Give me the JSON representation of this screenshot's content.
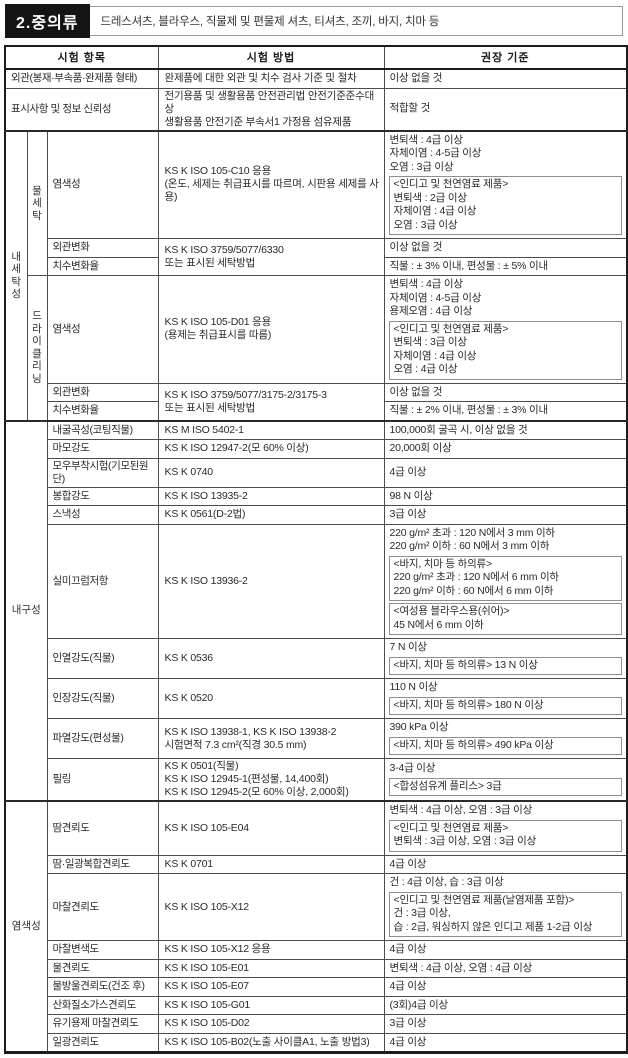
{
  "page": {
    "title": "2.중의류",
    "subtitle": "드레스셔츠, 블라우스, 직물제 및 편물제 셔츠, 티셔츠, 조끼, 바지, 치마 등"
  },
  "colors": {
    "title_bg": "#141414",
    "title_fg": "#ffffff",
    "border_dark": "#1c1c1c",
    "border": "#4c4c4c",
    "box_border": "#8f8f8f"
  },
  "table": {
    "headers": [
      "시험 항목",
      "시험 방법",
      "권장 기준"
    ],
    "sections": [
      {
        "rows": [
          {
            "item": "외관(봉재·부속품·완제품 형태)",
            "method": [
              "완제품에 대한 외관 및 치수 검사 기준 및 절차"
            ],
            "standard": [
              {
                "lines": [
                  "이상 없을 것"
                ]
              }
            ]
          },
          {
            "item": "표시사항 및 정보 신뢰성",
            "method": [
              "전기용품 및 생활용품 안전관리법 안전기준준수대상",
              "생활용품 안전기준 부속서1 가정용 섬유제품"
            ],
            "standard": [
              {
                "lines": [
                  "적합할 것"
                ]
              }
            ]
          }
        ]
      },
      {
        "group": "내세탁성",
        "vertical": true,
        "subsections": [
          {
            "subgroup": "물세탁",
            "rows": [
              {
                "item": "염색성",
                "method": [
                  "KS K ISO 105-C10 응용",
                  "(온도, 세제는 취급표시를 따르며, 시판용 세제를 사용)"
                ],
                "standard": [
                  {
                    "lines": [
                      "변퇴색 : 4급 이상",
                      "자체이염 : 4-5급 이상",
                      "오염 : 3급 이상"
                    ]
                  },
                  {
                    "box": true,
                    "lines": [
                      "<인디고 및 천연염료 제품>",
                      "변퇴색 : 2급 이상",
                      "자체이염 : 4급 이상",
                      "오염 : 3급 이상"
                    ]
                  }
                ]
              },
              {
                "item": "외관변화",
                "method": [
                  "KS K ISO 3759/5077/6330",
                  "또는 표시된 세탁방법"
                ],
                "methodSpan": 2,
                "standard": [
                  {
                    "lines": [
                      "이상 없을 것"
                    ]
                  }
                ]
              },
              {
                "item": "치수변화율",
                "method": null,
                "standard": [
                  {
                    "lines": [
                      "직물 : ± 3% 이내, 편성물 : ± 5% 이내"
                    ]
                  }
                ]
              }
            ]
          },
          {
            "subgroup": "드라이클리닝",
            "rows": [
              {
                "item": "염색성",
                "method": [
                  "KS K ISO 105-D01 응용",
                  "(용제는 취급표시를 따름)"
                ],
                "standard": [
                  {
                    "lines": [
                      "변퇴색 : 4급 이상",
                      "자체이염 : 4-5급 이상",
                      "용제오염 : 4급 이상"
                    ]
                  },
                  {
                    "box": true,
                    "lines": [
                      "<인디고 및 천연염료 제품>",
                      "변퇴색 : 3급 이상",
                      "자체이염 : 4급 이상",
                      "오염 : 4급 이상"
                    ]
                  }
                ]
              },
              {
                "item": "외관변화",
                "method": [
                  "KS K ISO 3759/5077/3175-2/3175-3",
                  "또는 표시된 세탁방법"
                ],
                "methodSpan": 2,
                "standard": [
                  {
                    "lines": [
                      "이상 없을 것"
                    ]
                  }
                ]
              },
              {
                "item": "치수변화율",
                "method": null,
                "standard": [
                  {
                    "lines": [
                      "직물 : ± 2% 이내, 편성물 : ± 3% 이내"
                    ]
                  }
                ]
              }
            ]
          }
        ]
      },
      {
        "group": "내구성",
        "vertical": false,
        "rows": [
          {
            "item": "내굴곡성(코팅직물)",
            "method": [
              "KS M ISO 5402-1"
            ],
            "standard": [
              {
                "lines": [
                  "100,000회 굴곡 시, 이상 없을 것"
                ]
              }
            ]
          },
          {
            "item": "마모강도",
            "method": [
              "KS K ISO 12947-2(모 60% 이상)"
            ],
            "standard": [
              {
                "lines": [
                  "20,000회 이상"
                ]
              }
            ]
          },
          {
            "item": "모우부착시험(기모된원단)",
            "method": [
              "KS K 0740"
            ],
            "standard": [
              {
                "lines": [
                  "4급 이상"
                ]
              }
            ]
          },
          {
            "item": "봉합강도",
            "method": [
              "KS K ISO 13935-2"
            ],
            "standard": [
              {
                "lines": [
                  "98 N 이상"
                ]
              }
            ]
          },
          {
            "item": "스낵성",
            "method": [
              "KS K 0561(D-2법)"
            ],
            "standard": [
              {
                "lines": [
                  "3급 이상"
                ]
              }
            ]
          },
          {
            "item": "실미끄럼저항",
            "method": [
              "KS K ISO 13936-2"
            ],
            "standard": [
              {
                "lines": [
                  "220 g/m² 초과 : 120 N에서 3 mm 이하",
                  "220 g/m² 이하 :  60 N에서 3 mm 이하"
                ]
              },
              {
                "box": true,
                "lines": [
                  "<바지, 치마 등 하의류>",
                  "220 g/m² 초과 : 120 N에서 6 mm 이하",
                  "220 g/m² 이하 :  60 N에서 6 mm 이하"
                ]
              },
              {
                "box": true,
                "lines": [
                  "<여성용 블라우스용(쉬어)>",
                  "45 N에서 6 mm 이하"
                ]
              }
            ]
          },
          {
            "item": "인열강도(직물)",
            "method": [
              "KS K 0536"
            ],
            "standard": [
              {
                "lines": [
                  "7 N 이상"
                ]
              },
              {
                "box": true,
                "lines": [
                  "<바지, 치마 등 하의류> 13 N 이상"
                ]
              }
            ]
          },
          {
            "item": "인장강도(직물)",
            "method": [
              "KS K 0520"
            ],
            "standard": [
              {
                "lines": [
                  "110 N 이상"
                ]
              },
              {
                "box": true,
                "lines": [
                  "<바지, 치마 등 하의류> 180 N 이상"
                ]
              }
            ]
          },
          {
            "item": "파열강도(편성물)",
            "method": [
              "KS K ISO 13938-1, KS K ISO 13938-2",
              "시험면적 7.3 cm²(직경 30.5 mm)"
            ],
            "standard": [
              {
                "lines": [
                  "390 kPa 이상"
                ]
              },
              {
                "box": true,
                "lines": [
                  "<바지, 치마 등 하의류> 490 kPa 이상"
                ]
              }
            ]
          },
          {
            "item": "필링",
            "method": [
              "KS K 0501(직물)",
              "KS K ISO 12945-1(편성물, 14,400회)",
              "KS K ISO 12945-2(모 60% 이상, 2,000회)"
            ],
            "standard": [
              {
                "lines": [
                  "3-4급 이상"
                ]
              },
              {
                "box": true,
                "lines": [
                  "<합성섬유계 플리스> 3급"
                ]
              }
            ]
          }
        ]
      },
      {
        "group": "염색성",
        "vertical": false,
        "rows": [
          {
            "item": "땀견뢰도",
            "method": [
              "KS K ISO 105-E04"
            ],
            "standard": [
              {
                "lines": [
                  "변퇴색 : 4급 이상, 오염 : 3급 이상"
                ]
              },
              {
                "box": true,
                "lines": [
                  "<인디고 및 천연염료 제품>",
                  "변퇴색 : 3급 이상, 오염 : 3급 이상"
                ]
              }
            ]
          },
          {
            "item": "땀·일광복합견뢰도",
            "method": [
              "KS K 0701"
            ],
            "standard": [
              {
                "lines": [
                  "4급 이상"
                ]
              }
            ]
          },
          {
            "item": "마찰견뢰도",
            "method": [
              "KS K ISO 105-X12"
            ],
            "standard": [
              {
                "lines": [
                  "건 : 4급 이상, 습 : 3급 이상"
                ]
              },
              {
                "box": true,
                "lines": [
                  "<인디고 및 천연염료 제품(날염제품 포함)>",
                  "건 : 3급 이상,",
                  "습 : 2급, 워싱하지 않은 인디고 제품 1-2급 이상"
                ]
              }
            ]
          },
          {
            "item": "마찰변색도",
            "method": [
              "KS K ISO 105-X12 응용"
            ],
            "standard": [
              {
                "lines": [
                  "4급 이상"
                ]
              }
            ]
          },
          {
            "item": "물견뢰도",
            "method": [
              "KS K ISO 105-E01"
            ],
            "standard": [
              {
                "lines": [
                  "변퇴색 : 4급 이상, 오염 : 4급 이상"
                ]
              }
            ]
          },
          {
            "item": "물방울견뢰도(건조 후)",
            "method": [
              "KS K ISO 105-E07"
            ],
            "standard": [
              {
                "lines": [
                  "4급 이상"
                ]
              }
            ]
          },
          {
            "item": "산화질소가스견뢰도",
            "method": [
              "KS K ISO 105-G01"
            ],
            "standard": [
              {
                "lines": [
                  "(3회)4급 이상"
                ]
              }
            ]
          },
          {
            "item": "유기용제 마찰견뢰도",
            "method": [
              "KS K ISO 105-D02"
            ],
            "standard": [
              {
                "lines": [
                  "3급 이상"
                ]
              }
            ]
          },
          {
            "item": "일광견뢰도",
            "method": [
              "KS K ISO 105-B02(노출 사이클A1, 노출 방법3)"
            ],
            "standard": [
              {
                "lines": [
                  "4급 이상"
                ]
              }
            ]
          }
        ]
      }
    ]
  }
}
